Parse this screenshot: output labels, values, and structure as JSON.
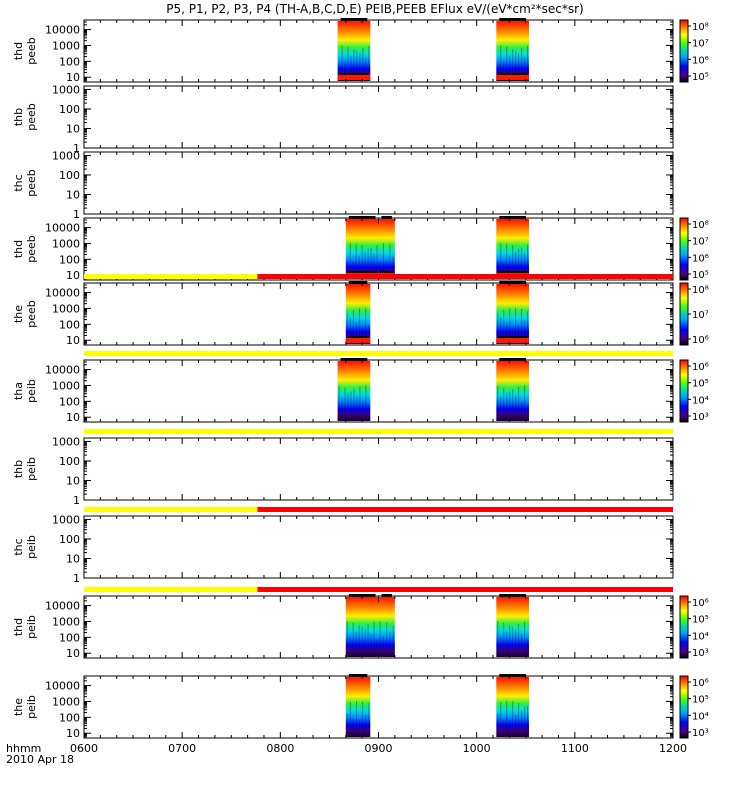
{
  "chart_data": {
    "type": "heatmap",
    "title": "P5, P1, P2, P3, P4 (TH-A,B,C,D,E) PEIB,PEEB EFlux eV/(eV*cm²*sec*sr)",
    "x_ticks": [
      "0600",
      "0700",
      "0800",
      "0900",
      "1000",
      "1100",
      "1200"
    ],
    "x_range": [
      "0600",
      "1200"
    ],
    "x_label_line1": "hhmm",
    "x_label_line2": "2010 Apr 18",
    "y_scale": "log",
    "panels": [
      {
        "label1": "thd",
        "label2": "peeb",
        "y_ticks": [
          "10",
          "100",
          "1000",
          "10000"
        ],
        "y_range": [
          5,
          40000
        ],
        "colorbar": {
          "ticks": [
            "10⁵",
            "10⁶",
            "10⁷",
            "10⁸"
          ]
        },
        "bursts": [
          {
            "start": "0835",
            "end": "0855"
          },
          {
            "start": "1012",
            "end": "1032"
          }
        ],
        "mode_bar": null
      },
      {
        "label1": "thb",
        "label2": "peeb",
        "y_ticks": [
          "1",
          "10",
          "100",
          "1000"
        ],
        "y_range": [
          1,
          1500
        ],
        "colorbar": null,
        "bursts": [],
        "mode_bar": null
      },
      {
        "label1": "thc",
        "label2": "peeb",
        "y_ticks": [
          "1",
          "10",
          "100",
          "1000"
        ],
        "y_range": [
          1,
          1500
        ],
        "colorbar": null,
        "bursts": [],
        "mode_bar": null
      },
      {
        "label1": "thd",
        "label2": "peeb",
        "y_ticks": [
          "10",
          "100",
          "1000",
          "10000"
        ],
        "y_range": [
          5,
          40000
        ],
        "colorbar": {
          "ticks": [
            "10⁵",
            "10⁶",
            "10⁷",
            "10⁸"
          ]
        },
        "bursts": [
          {
            "start": "0840",
            "end": "0900"
          },
          {
            "start": "0900",
            "end": "0910"
          },
          {
            "start": "1012",
            "end": "1032"
          }
        ],
        "mode_bar": null
      },
      {
        "label1": "the",
        "label2": "peeb",
        "y_ticks": [
          "10",
          "100",
          "1000",
          "10000"
        ],
        "y_range": [
          5,
          40000
        ],
        "colorbar": {
          "ticks": [
            "10⁶",
            "10⁷",
            "10⁸"
          ]
        },
        "bursts": [
          {
            "start": "0840",
            "end": "0855"
          },
          {
            "start": "1012",
            "end": "1032"
          }
        ],
        "mode_bar": [
          {
            "start": "0600",
            "end": "0746",
            "color": "#ffff00"
          },
          {
            "start": "0746",
            "end": "1200",
            "color": "#ff0000"
          }
        ]
      },
      {
        "label1": "tha",
        "label2": "peib",
        "y_ticks": [
          "10",
          "100",
          "1000",
          "10000"
        ],
        "y_range": [
          5,
          40000
        ],
        "colorbar": {
          "ticks": [
            "10³",
            "10⁴",
            "10⁵",
            "10⁶"
          ]
        },
        "bursts": [
          {
            "start": "0835",
            "end": "0855"
          },
          {
            "start": "1012",
            "end": "1032"
          }
        ],
        "mode_bar": [
          {
            "start": "0600",
            "end": "1200",
            "color": "#ffff00"
          }
        ]
      },
      {
        "label1": "thb",
        "label2": "peib",
        "y_ticks": [
          "1",
          "10",
          "100",
          "1000"
        ],
        "y_range": [
          1,
          1500
        ],
        "colorbar": null,
        "bursts": [],
        "mode_bar": [
          {
            "start": "0600",
            "end": "1200",
            "color": "#ffff00"
          }
        ]
      },
      {
        "label1": "thc",
        "label2": "peib",
        "y_ticks": [
          "1",
          "10",
          "100",
          "1000"
        ],
        "y_range": [
          1,
          1500
        ],
        "colorbar": null,
        "bursts": [],
        "mode_bar": [
          {
            "start": "0600",
            "end": "0746",
            "color": "#ffff00"
          },
          {
            "start": "0746",
            "end": "1200",
            "color": "#ff0000"
          }
        ]
      },
      {
        "label1": "thd",
        "label2": "peib",
        "y_ticks": [
          "10",
          "100",
          "1000",
          "10000"
        ],
        "y_range": [
          5,
          40000
        ],
        "colorbar": {
          "ticks": [
            "10³",
            "10⁴",
            "10⁵",
            "10⁶"
          ]
        },
        "bursts": [
          {
            "start": "0840",
            "end": "0900"
          },
          {
            "start": "0900",
            "end": "0910"
          },
          {
            "start": "1012",
            "end": "1032"
          }
        ],
        "mode_bar": [
          {
            "start": "0600",
            "end": "0746",
            "color": "#ffff00"
          },
          {
            "start": "0746",
            "end": "1200",
            "color": "#ff0000"
          }
        ]
      },
      {
        "label1": "the",
        "label2": "peib",
        "y_ticks": [
          "10",
          "100",
          "1000",
          "10000"
        ],
        "y_range": [
          5,
          40000
        ],
        "colorbar": {
          "ticks": [
            "10³",
            "10⁴",
            "10⁵",
            "10⁶"
          ]
        },
        "bursts": [
          {
            "start": "0840",
            "end": "0855"
          },
          {
            "start": "1012",
            "end": "1032"
          }
        ],
        "mode_bar": null
      }
    ]
  }
}
